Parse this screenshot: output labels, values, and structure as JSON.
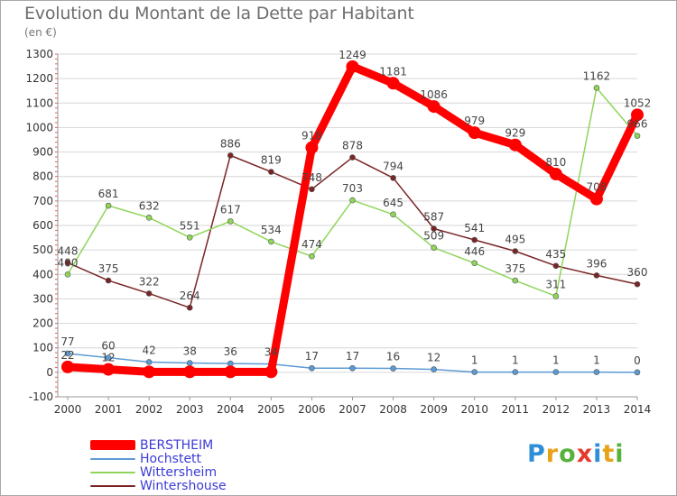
{
  "title": "Evolution du Montant de la Dette par Habitant",
  "unit_label": "(en €)",
  "logo": {
    "text": "Proxiti",
    "letter_colors": [
      "#2e8fd8",
      "#e8a21a",
      "#56b23c",
      "#e53a2b",
      "#2e8fd8",
      "#e8a21a",
      "#56b23c"
    ]
  },
  "chart_data": {
    "type": "line",
    "title": "Evolution du Montant de la Dette par Habitant",
    "ylabel": "(en €)",
    "xlabel": "",
    "x": [
      "2000",
      "2001",
      "2002",
      "2003",
      "2004",
      "2005",
      "2006",
      "2007",
      "2008",
      "2009",
      "2010",
      "2011",
      "2012",
      "2013",
      "2014"
    ],
    "ylim": [
      -100,
      1300
    ],
    "yticks": [
      -100,
      0,
      100,
      200,
      300,
      400,
      500,
      600,
      700,
      800,
      900,
      1000,
      1100,
      1200,
      1300
    ],
    "grid": "horizontal",
    "legend_position": "bottom-left",
    "series": [
      {
        "name": "BERSTHEIM",
        "color": "#ff0000",
        "values": [
          22,
          12,
          2,
          2,
          2,
          2,
          918,
          1249,
          1181,
          1086,
          979,
          929,
          810,
          708,
          1052
        ],
        "labels": [
          "22",
          "12",
          "",
          "",
          "",
          "",
          "918",
          "1249",
          "1181",
          "1086",
          "979",
          "929",
          "810",
          "708",
          "1052"
        ]
      },
      {
        "name": "Hochstett",
        "color": "#5b9bd5",
        "values": [
          77,
          60,
          42,
          38,
          36,
          34,
          17,
          17,
          16,
          12,
          1,
          1,
          1,
          1,
          0
        ],
        "labels": [
          "77",
          "60",
          "42",
          "38",
          "36",
          "34",
          "17",
          "17",
          "16",
          "12",
          "1",
          "1",
          "1",
          "1",
          "0"
        ]
      },
      {
        "name": "Wittersheim",
        "color": "#8ed55a",
        "values": [
          400,
          681,
          632,
          551,
          617,
          534,
          474,
          703,
          645,
          509,
          446,
          375,
          311,
          1162,
          966
        ],
        "labels": [
          "400",
          "681",
          "632",
          "551",
          "617",
          "534",
          "474",
          "703",
          "645",
          "509",
          "446",
          "375",
          "311",
          "1162",
          "966"
        ]
      },
      {
        "name": "Wintershouse",
        "color": "#7a2525",
        "values": [
          448,
          375,
          322,
          264,
          886,
          819,
          748,
          878,
          794,
          587,
          541,
          495,
          435,
          396,
          360
        ],
        "labels": [
          "448",
          "375",
          "322",
          "264",
          "886",
          "819",
          "748",
          "878",
          "794",
          "587",
          "541",
          "495",
          "435",
          "396",
          "360"
        ]
      }
    ]
  }
}
